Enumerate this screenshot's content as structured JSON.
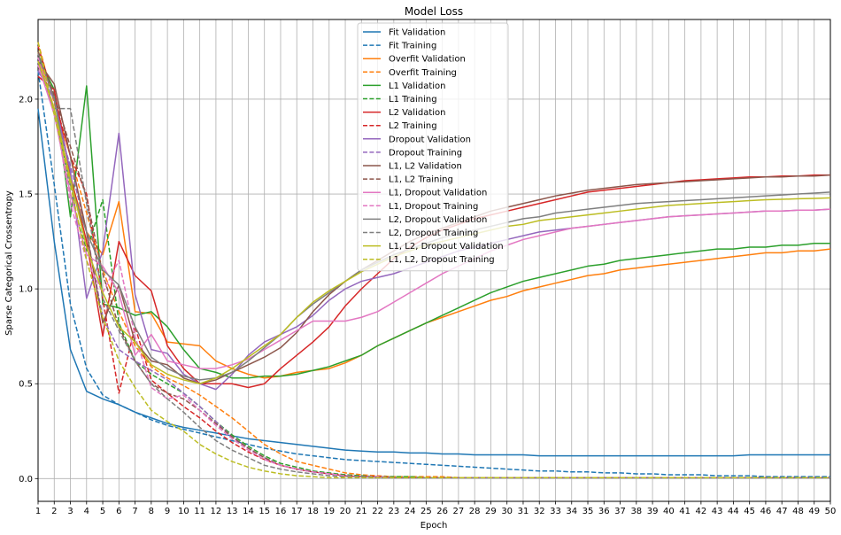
{
  "chart_data": {
    "type": "line",
    "title": "Model Loss",
    "xlabel": "Epoch",
    "ylabel": "Sparse Categorical Crossentropy",
    "xlim": [
      1,
      50
    ],
    "ylim": [
      -0.12,
      2.42
    ],
    "x_ticks": [
      1,
      2,
      3,
      4,
      5,
      6,
      7,
      8,
      9,
      10,
      11,
      12,
      13,
      14,
      15,
      16,
      17,
      18,
      19,
      20,
      21,
      22,
      23,
      24,
      25,
      26,
      27,
      28,
      29,
      30,
      31,
      32,
      33,
      34,
      35,
      36,
      37,
      38,
      39,
      40,
      41,
      42,
      43,
      44,
      45,
      46,
      47,
      48,
      49,
      50
    ],
    "y_ticks": [
      0.0,
      0.5,
      1.0,
      1.5,
      2.0
    ],
    "y_tick_labels": [
      "0.0",
      "0.5",
      "1.0",
      "1.5",
      "2.0"
    ],
    "grid": true,
    "legend_position": "top-center",
    "series": [
      {
        "name": "Fit Validation",
        "color": "#1f77b4",
        "dash": "solid",
        "values": [
          1.95,
          1.25,
          0.68,
          0.46,
          0.42,
          0.39,
          0.35,
          0.32,
          0.29,
          0.27,
          0.255,
          0.24,
          0.225,
          0.21,
          0.2,
          0.19,
          0.18,
          0.17,
          0.16,
          0.15,
          0.145,
          0.14,
          0.14,
          0.135,
          0.135,
          0.13,
          0.13,
          0.125,
          0.125,
          0.125,
          0.125,
          0.12,
          0.12,
          0.12,
          0.12,
          0.12,
          0.12,
          0.12,
          0.12,
          0.12,
          0.12,
          0.12,
          0.12,
          0.12,
          0.125,
          0.125,
          0.125,
          0.125,
          0.125,
          0.125
        ]
      },
      {
        "name": "Fit Training",
        "color": "#1f77b4",
        "dash": "dashed",
        "values": [
          2.15,
          1.55,
          0.92,
          0.58,
          0.44,
          0.39,
          0.35,
          0.31,
          0.28,
          0.26,
          0.24,
          0.22,
          0.2,
          0.18,
          0.16,
          0.145,
          0.13,
          0.12,
          0.11,
          0.1,
          0.095,
          0.09,
          0.085,
          0.08,
          0.075,
          0.07,
          0.065,
          0.06,
          0.055,
          0.05,
          0.045,
          0.04,
          0.04,
          0.035,
          0.035,
          0.03,
          0.03,
          0.025,
          0.025,
          0.02,
          0.02,
          0.02,
          0.015,
          0.015,
          0.015,
          0.01,
          0.01,
          0.01,
          0.01,
          0.01
        ]
      },
      {
        "name": "Overfit Validation",
        "color": "#ff7f0e",
        "dash": "solid",
        "values": [
          2.25,
          1.92,
          1.58,
          1.3,
          1.18,
          1.46,
          0.88,
          0.87,
          0.72,
          0.71,
          0.7,
          0.62,
          0.58,
          0.55,
          0.53,
          0.54,
          0.56,
          0.57,
          0.58,
          0.61,
          0.65,
          0.7,
          0.74,
          0.78,
          0.82,
          0.85,
          0.88,
          0.91,
          0.94,
          0.96,
          0.99,
          1.01,
          1.03,
          1.05,
          1.07,
          1.08,
          1.1,
          1.11,
          1.12,
          1.13,
          1.14,
          1.15,
          1.16,
          1.17,
          1.18,
          1.19,
          1.19,
          1.2,
          1.2,
          1.21
        ]
      },
      {
        "name": "Overfit Training",
        "color": "#ff7f0e",
        "dash": "dashed",
        "values": [
          2.3,
          1.98,
          1.7,
          1.4,
          1.1,
          0.88,
          0.7,
          0.59,
          0.53,
          0.49,
          0.44,
          0.38,
          0.32,
          0.25,
          0.18,
          0.13,
          0.09,
          0.07,
          0.05,
          0.03,
          0.02,
          0.015,
          0.01,
          0.01,
          0.01,
          0.01,
          0.005,
          0.005,
          0.005,
          0.005,
          0.005,
          0.005,
          0.005,
          0.005,
          0.005,
          0.005,
          0.005,
          0.005,
          0.005,
          0.005,
          0.005,
          0.005,
          0.005,
          0.005,
          0.005,
          0.005,
          0.005,
          0.005,
          0.005,
          0.005
        ]
      },
      {
        "name": "L1 Validation",
        "color": "#2ca02c",
        "dash": "solid",
        "values": [
          2.22,
          2.05,
          1.38,
          2.07,
          0.92,
          0.9,
          0.86,
          0.88,
          0.8,
          0.68,
          0.58,
          0.56,
          0.53,
          0.53,
          0.54,
          0.54,
          0.55,
          0.57,
          0.59,
          0.62,
          0.65,
          0.7,
          0.74,
          0.78,
          0.82,
          0.86,
          0.9,
          0.94,
          0.98,
          1.01,
          1.04,
          1.06,
          1.08,
          1.1,
          1.12,
          1.13,
          1.15,
          1.16,
          1.17,
          1.18,
          1.19,
          1.2,
          1.21,
          1.21,
          1.22,
          1.22,
          1.23,
          1.23,
          1.24,
          1.24
        ]
      },
      {
        "name": "L1 Training",
        "color": "#2ca02c",
        "dash": "dashed",
        "values": [
          2.25,
          2.02,
          1.5,
          1.2,
          1.47,
          0.82,
          0.62,
          0.55,
          0.5,
          0.45,
          0.38,
          0.3,
          0.23,
          0.17,
          0.12,
          0.08,
          0.06,
          0.04,
          0.03,
          0.02,
          0.015,
          0.01,
          0.01,
          0.01,
          0.005,
          0.005,
          0.005,
          0.005,
          0.005,
          0.005,
          0.005,
          0.005,
          0.005,
          0.005,
          0.005,
          0.005,
          0.005,
          0.005,
          0.005,
          0.005,
          0.005,
          0.005,
          0.005,
          0.005,
          0.005,
          0.005,
          0.005,
          0.005,
          0.005,
          0.005
        ]
      },
      {
        "name": "L2 Validation",
        "color": "#d62728",
        "dash": "solid",
        "values": [
          2.12,
          2.05,
          1.6,
          1.25,
          0.75,
          1.25,
          1.07,
          0.99,
          0.7,
          0.58,
          0.5,
          0.5,
          0.5,
          0.48,
          0.5,
          0.58,
          0.65,
          0.72,
          0.8,
          0.91,
          1.0,
          1.08,
          1.16,
          1.22,
          1.27,
          1.31,
          1.34,
          1.37,
          1.39,
          1.41,
          1.43,
          1.45,
          1.47,
          1.49,
          1.51,
          1.52,
          1.53,
          1.54,
          1.55,
          1.56,
          1.57,
          1.575,
          1.58,
          1.585,
          1.59,
          1.59,
          1.595,
          1.595,
          1.6,
          1.6
        ]
      },
      {
        "name": "L2 Training",
        "color": "#d62728",
        "dash": "dashed",
        "values": [
          2.28,
          2.0,
          1.7,
          1.5,
          0.95,
          0.45,
          0.8,
          0.52,
          0.45,
          0.38,
          0.32,
          0.25,
          0.19,
          0.14,
          0.1,
          0.07,
          0.05,
          0.035,
          0.025,
          0.015,
          0.01,
          0.01,
          0.005,
          0.005,
          0.005,
          0.005,
          0.005,
          0.005,
          0.005,
          0.005,
          0.005,
          0.005,
          0.005,
          0.005,
          0.005,
          0.005,
          0.005,
          0.005,
          0.005,
          0.005,
          0.005,
          0.005,
          0.005,
          0.005,
          0.005,
          0.005,
          0.005,
          0.005,
          0.005,
          0.005
        ]
      },
      {
        "name": "Dropout Validation",
        "color": "#9467bd",
        "dash": "solid",
        "values": [
          2.15,
          2.0,
          1.62,
          0.95,
          1.2,
          1.82,
          0.97,
          0.68,
          0.66,
          0.55,
          0.5,
          0.47,
          0.55,
          0.65,
          0.72,
          0.76,
          0.8,
          0.86,
          0.94,
          1.0,
          1.04,
          1.06,
          1.08,
          1.11,
          1.14,
          1.17,
          1.2,
          1.22,
          1.24,
          1.26,
          1.28,
          1.3,
          1.31,
          1.32,
          1.33,
          1.34,
          1.35,
          1.36,
          1.37,
          1.38,
          1.385,
          1.39,
          1.395,
          1.4,
          1.405,
          1.41,
          1.41,
          1.415,
          1.415,
          1.42
        ]
      },
      {
        "name": "Dropout Training",
        "color": "#9467bd",
        "dash": "dashed",
        "values": [
          2.2,
          1.92,
          1.65,
          1.3,
          0.85,
          0.68,
          0.62,
          0.57,
          0.52,
          0.45,
          0.38,
          0.3,
          0.22,
          0.16,
          0.11,
          0.07,
          0.05,
          0.035,
          0.025,
          0.015,
          0.01,
          0.01,
          0.005,
          0.005,
          0.005,
          0.005,
          0.005,
          0.005,
          0.005,
          0.005,
          0.005,
          0.005,
          0.005,
          0.005,
          0.005,
          0.005,
          0.005,
          0.005,
          0.005,
          0.005,
          0.005,
          0.005,
          0.005,
          0.005,
          0.005,
          0.005,
          0.005,
          0.005,
          0.005,
          0.005
        ]
      },
      {
        "name": "L1, L2 Validation",
        "color": "#8c564b",
        "dash": "solid",
        "values": [
          2.2,
          2.08,
          1.7,
          1.3,
          0.82,
          1.02,
          0.72,
          0.62,
          0.6,
          0.53,
          0.5,
          0.52,
          0.56,
          0.6,
          0.64,
          0.69,
          0.77,
          0.88,
          0.97,
          1.04,
          1.1,
          1.15,
          1.2,
          1.25,
          1.29,
          1.32,
          1.35,
          1.38,
          1.41,
          1.43,
          1.45,
          1.47,
          1.49,
          1.505,
          1.52,
          1.53,
          1.54,
          1.55,
          1.555,
          1.56,
          1.565,
          1.57,
          1.575,
          1.58,
          1.585,
          1.59,
          1.59,
          1.595,
          1.595,
          1.6
        ]
      },
      {
        "name": "L1, L2 Training",
        "color": "#8c564b",
        "dash": "dashed",
        "values": [
          2.25,
          2.02,
          1.75,
          1.48,
          1.08,
          0.8,
          0.62,
          0.5,
          0.45,
          0.42,
          0.36,
          0.29,
          0.22,
          0.16,
          0.11,
          0.07,
          0.05,
          0.035,
          0.025,
          0.015,
          0.01,
          0.01,
          0.005,
          0.005,
          0.005,
          0.005,
          0.005,
          0.005,
          0.005,
          0.005,
          0.005,
          0.005,
          0.005,
          0.005,
          0.005,
          0.005,
          0.005,
          0.005,
          0.005,
          0.005,
          0.005,
          0.005,
          0.005,
          0.005,
          0.005,
          0.005,
          0.005,
          0.005,
          0.005,
          0.005
        ]
      },
      {
        "name": "L1, Dropout Validation",
        "color": "#e377c2",
        "dash": "solid",
        "values": [
          2.18,
          1.92,
          1.5,
          1.18,
          1.12,
          0.98,
          0.65,
          0.76,
          0.62,
          0.6,
          0.58,
          0.58,
          0.6,
          0.63,
          0.68,
          0.73,
          0.78,
          0.83,
          0.83,
          0.83,
          0.85,
          0.88,
          0.93,
          0.98,
          1.03,
          1.08,
          1.12,
          1.16,
          1.2,
          1.23,
          1.26,
          1.28,
          1.3,
          1.32,
          1.33,
          1.34,
          1.35,
          1.36,
          1.37,
          1.38,
          1.385,
          1.39,
          1.395,
          1.4,
          1.405,
          1.41,
          1.41,
          1.415,
          1.415,
          1.42
        ]
      },
      {
        "name": "L1, Dropout Training",
        "color": "#e377c2",
        "dash": "dashed",
        "values": [
          2.22,
          1.95,
          1.45,
          1.15,
          0.98,
          1.15,
          0.75,
          0.48,
          0.42,
          0.44,
          0.36,
          0.28,
          0.21,
          0.15,
          0.1,
          0.07,
          0.05,
          0.035,
          0.025,
          0.015,
          0.01,
          0.01,
          0.005,
          0.005,
          0.005,
          0.005,
          0.005,
          0.005,
          0.005,
          0.005,
          0.005,
          0.005,
          0.005,
          0.005,
          0.005,
          0.005,
          0.005,
          0.005,
          0.005,
          0.005,
          0.005,
          0.005,
          0.005,
          0.005,
          0.005,
          0.005,
          0.005,
          0.005,
          0.005,
          0.005
        ]
      },
      {
        "name": "L2, Dropout Validation",
        "color": "#7f7f7f",
        "dash": "solid",
        "values": [
          2.24,
          2.0,
          1.55,
          1.3,
          1.1,
          1.02,
          0.8,
          0.64,
          0.58,
          0.54,
          0.52,
          0.53,
          0.56,
          0.62,
          0.69,
          0.76,
          0.85,
          0.92,
          0.98,
          1.04,
          1.1,
          1.14,
          1.18,
          1.21,
          1.24,
          1.27,
          1.29,
          1.31,
          1.33,
          1.35,
          1.37,
          1.38,
          1.4,
          1.41,
          1.42,
          1.43,
          1.44,
          1.45,
          1.455,
          1.46,
          1.465,
          1.47,
          1.475,
          1.48,
          1.485,
          1.49,
          1.495,
          1.5,
          1.505,
          1.51
        ]
      },
      {
        "name": "L2, Dropout Training",
        "color": "#7f7f7f",
        "dash": "dashed",
        "values": [
          2.2,
          1.95,
          1.95,
          1.45,
          0.95,
          0.78,
          0.62,
          0.5,
          0.42,
          0.35,
          0.27,
          0.2,
          0.15,
          0.11,
          0.07,
          0.05,
          0.035,
          0.025,
          0.015,
          0.01,
          0.01,
          0.005,
          0.005,
          0.005,
          0.005,
          0.005,
          0.005,
          0.005,
          0.005,
          0.005,
          0.005,
          0.005,
          0.005,
          0.005,
          0.005,
          0.005,
          0.005,
          0.005,
          0.005,
          0.005,
          0.005,
          0.005,
          0.005,
          0.005,
          0.005,
          0.005,
          0.005,
          0.005,
          0.005,
          0.005
        ]
      },
      {
        "name": "L1, L2, Dropout Validation",
        "color": "#bcbd22",
        "dash": "solid",
        "values": [
          2.2,
          1.95,
          1.58,
          1.22,
          0.98,
          0.8,
          0.72,
          0.6,
          0.55,
          0.52,
          0.5,
          0.53,
          0.58,
          0.64,
          0.7,
          0.76,
          0.85,
          0.93,
          0.99,
          1.04,
          1.09,
          1.13,
          1.17,
          1.2,
          1.23,
          1.25,
          1.27,
          1.29,
          1.31,
          1.33,
          1.34,
          1.36,
          1.37,
          1.38,
          1.39,
          1.4,
          1.41,
          1.42,
          1.43,
          1.44,
          1.445,
          1.45,
          1.455,
          1.46,
          1.465,
          1.47,
          1.472,
          1.475,
          1.477,
          1.48
        ]
      },
      {
        "name": "L1, L2, Dropout Training",
        "color": "#bcbd22",
        "dash": "dashed",
        "values": [
          2.3,
          1.92,
          1.55,
          1.15,
          0.85,
          0.62,
          0.48,
          0.36,
          0.3,
          0.25,
          0.18,
          0.13,
          0.09,
          0.06,
          0.04,
          0.025,
          0.015,
          0.01,
          0.005,
          0.005,
          0.005,
          0.005,
          0.005,
          0.005,
          0.005,
          0.005,
          0.005,
          0.005,
          0.005,
          0.005,
          0.005,
          0.005,
          0.005,
          0.005,
          0.005,
          0.005,
          0.005,
          0.005,
          0.005,
          0.005,
          0.005,
          0.005,
          0.005,
          0.005,
          0.005,
          0.005,
          0.005,
          0.005,
          0.005,
          0.005
        ]
      }
    ]
  }
}
